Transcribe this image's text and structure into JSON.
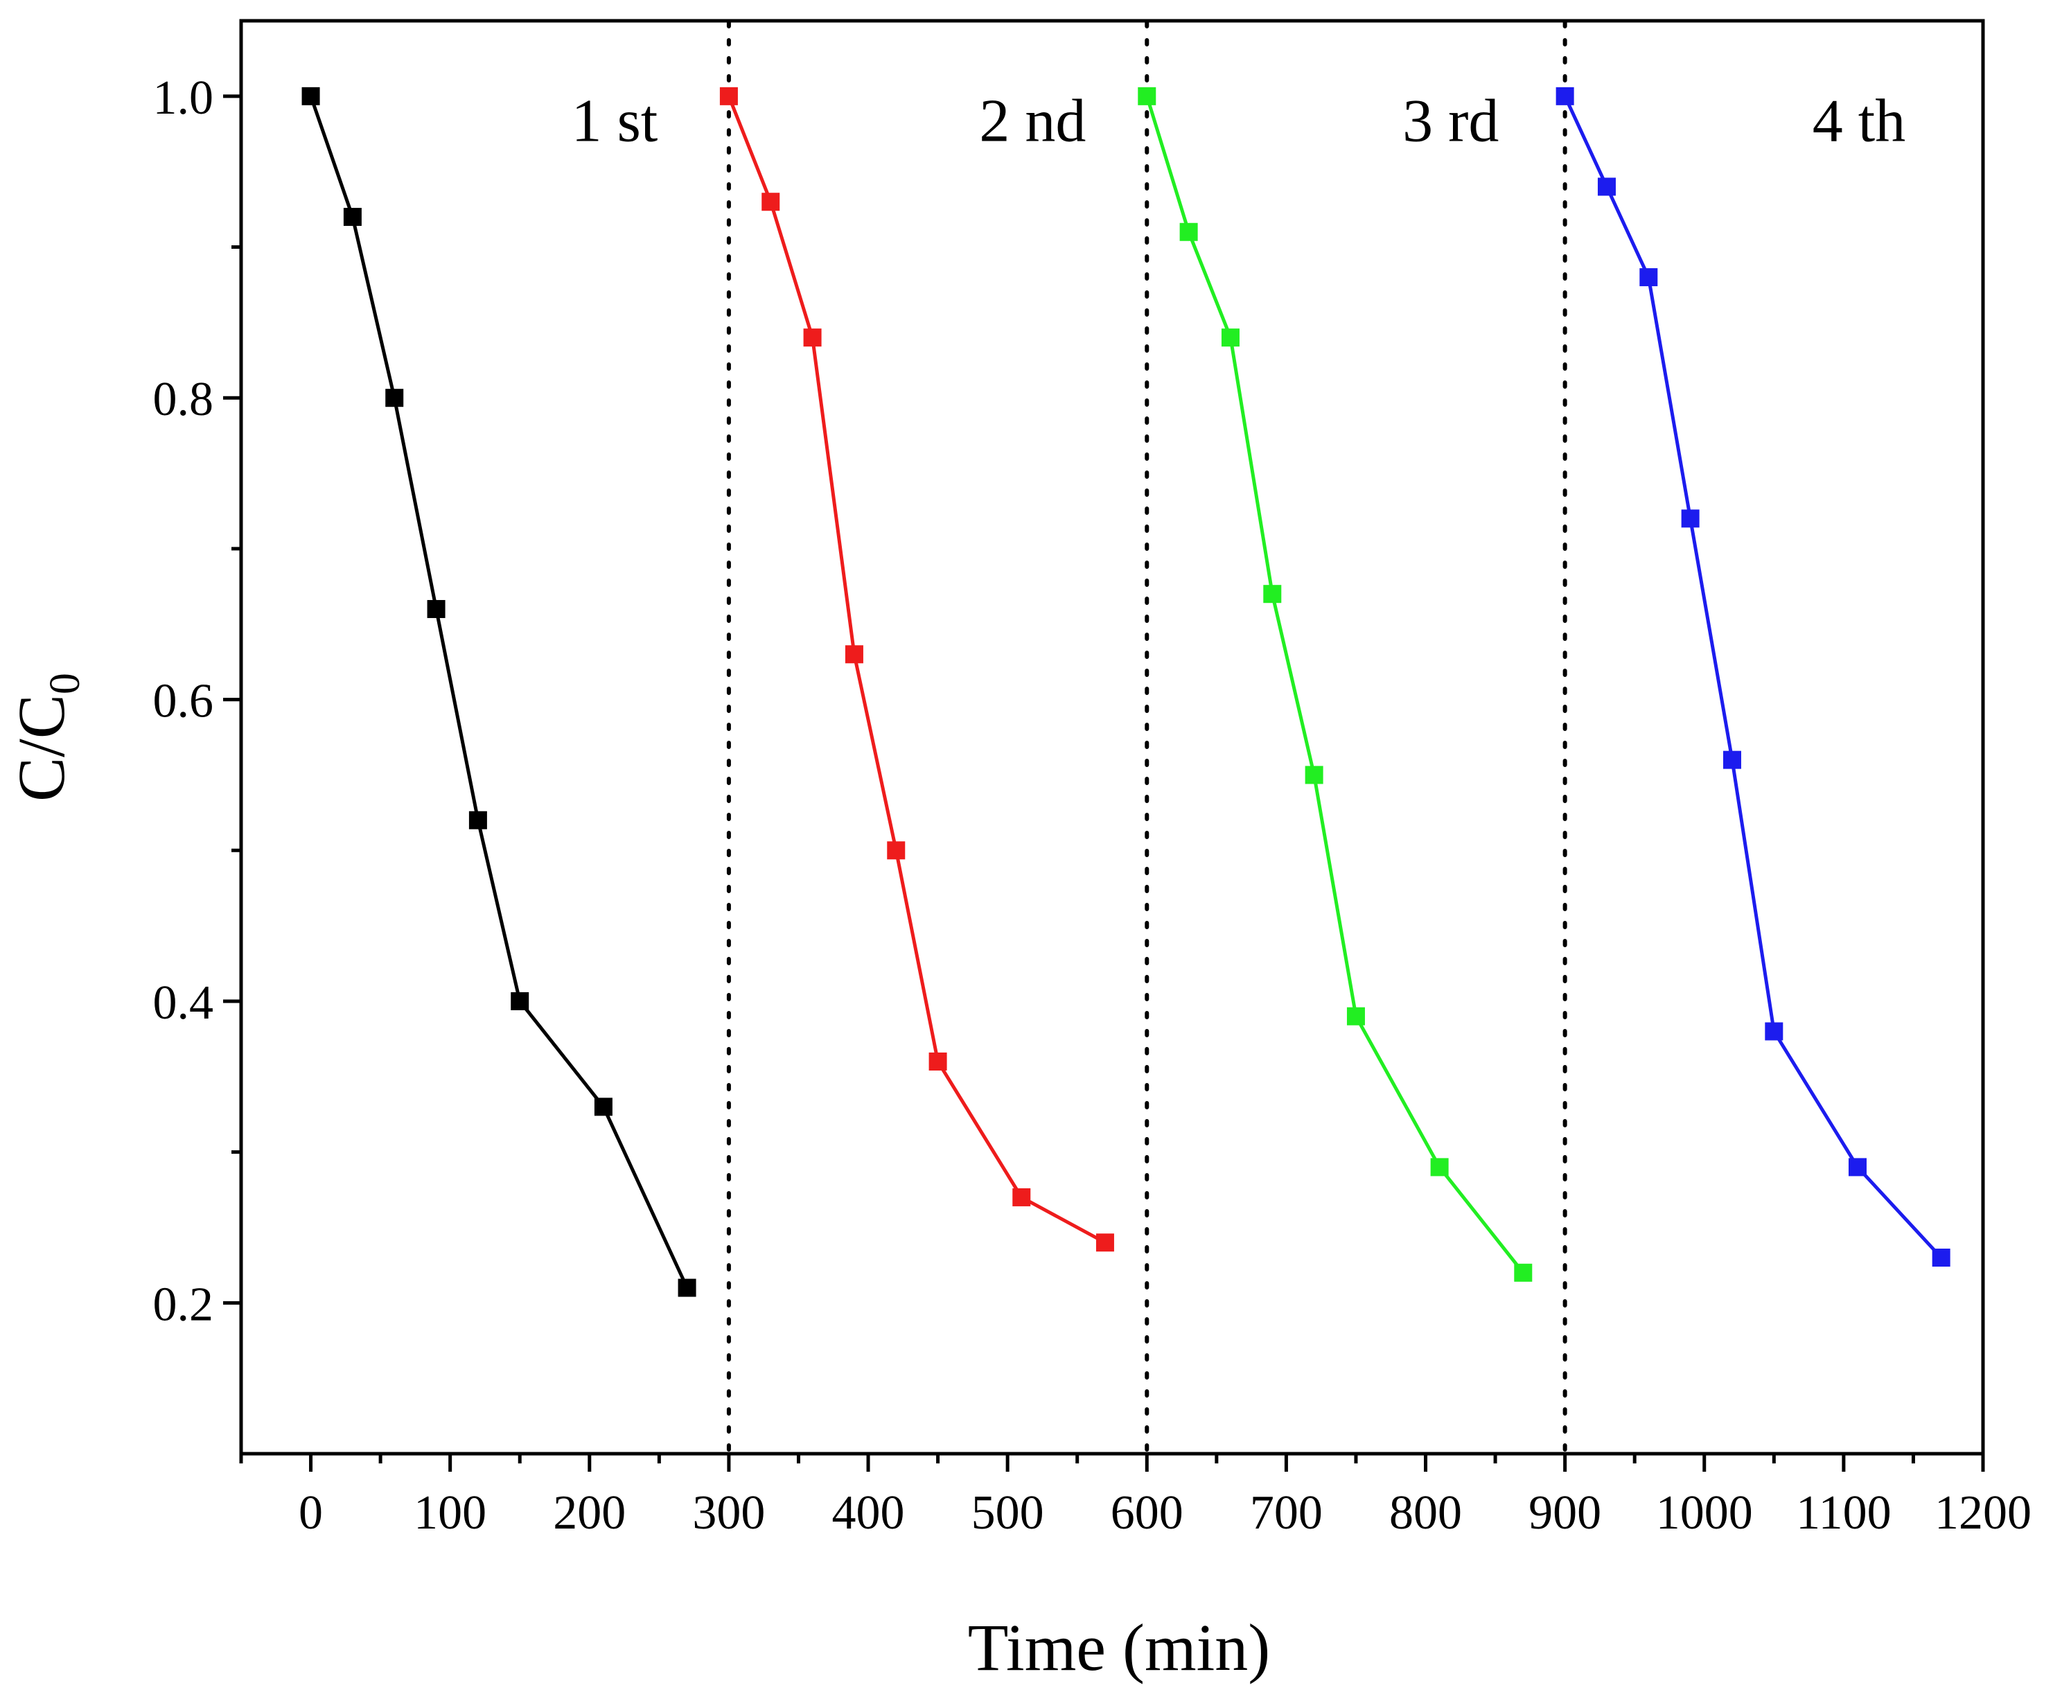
{
  "chart_data": {
    "type": "line",
    "xlabel": "Time (min)",
    "ylabel": {
      "main": "C/C",
      "subscript": "0"
    },
    "xlim": [
      -50,
      1200
    ],
    "ylim": [
      0.1,
      1.05
    ],
    "xticks": [
      0,
      100,
      200,
      300,
      400,
      500,
      600,
      700,
      800,
      900,
      1000,
      1100,
      1200
    ],
    "yticks": [
      0.2,
      0.4,
      0.6,
      0.8,
      1.0
    ],
    "ytick_labels": [
      "0.2",
      "0.4",
      "0.6",
      "0.8",
      "1.0"
    ],
    "yminor_ticks": [
      0.3,
      0.5,
      0.7,
      0.9
    ],
    "grid": false,
    "cycle_dividers": [
      300,
      600,
      900
    ],
    "series": [
      {
        "name": "1 st",
        "color": "#000000",
        "label_at": [
          218,
          0.985
        ],
        "x": [
          0,
          30,
          60,
          90,
          120,
          150,
          210,
          270
        ],
        "y": [
          1.0,
          0.92,
          0.8,
          0.66,
          0.52,
          0.4,
          0.33,
          0.21
        ]
      },
      {
        "name": "2 nd",
        "color": "#ee1c1c",
        "label_at": [
          518,
          0.985
        ],
        "x": [
          300,
          330,
          360,
          390,
          420,
          450,
          510,
          570
        ],
        "y": [
          1.0,
          0.93,
          0.84,
          0.63,
          0.5,
          0.36,
          0.27,
          0.24
        ]
      },
      {
        "name": "3 rd",
        "color": "#22ee22",
        "label_at": [
          818,
          0.985
        ],
        "x": [
          600,
          630,
          660,
          690,
          720,
          750,
          810,
          870
        ],
        "y": [
          1.0,
          0.91,
          0.84,
          0.67,
          0.55,
          0.39,
          0.29,
          0.22
        ]
      },
      {
        "name": "4 th",
        "color": "#1c1cee",
        "label_at": [
          1111,
          0.985
        ],
        "x": [
          900,
          930,
          960,
          990,
          1020,
          1050,
          1110,
          1170
        ],
        "y": [
          1.0,
          0.94,
          0.88,
          0.72,
          0.56,
          0.38,
          0.29,
          0.23
        ]
      }
    ]
  }
}
